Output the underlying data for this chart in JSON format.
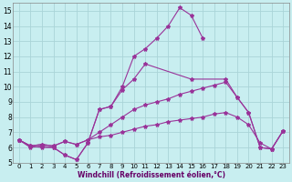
{
  "xlabel": "Windchill (Refroidissement éolien,°C)",
  "xlim": [
    -0.5,
    23.5
  ],
  "ylim": [
    5,
    15.5
  ],
  "xticks": [
    0,
    1,
    2,
    3,
    4,
    5,
    6,
    7,
    8,
    9,
    10,
    11,
    12,
    13,
    14,
    15,
    16,
    17,
    18,
    19,
    20,
    21,
    22,
    23
  ],
  "yticks": [
    5,
    6,
    7,
    8,
    9,
    10,
    11,
    12,
    13,
    14,
    15
  ],
  "background_color": "#c8eef0",
  "grid_color": "#aad4d8",
  "line_color": "#993399",
  "s1_x": [
    0,
    1,
    2,
    3,
    4,
    5,
    6,
    7,
    8,
    9,
    10,
    11,
    12,
    13,
    14,
    15,
    16
  ],
  "s1_y": [
    6.5,
    6.0,
    6.1,
    6.0,
    5.5,
    5.2,
    6.3,
    8.5,
    8.7,
    10.0,
    12.0,
    12.5,
    13.2,
    14.0,
    15.2,
    14.7,
    13.2
  ],
  "s2_x": [
    0,
    1,
    2,
    3,
    4,
    5,
    6,
    7,
    8,
    9,
    10,
    11,
    12,
    13,
    15,
    18,
    19,
    20,
    21,
    22,
    23
  ],
  "s2_y": [
    6.5,
    6.1,
    6.0,
    6.0,
    5.5,
    5.2,
    6.3,
    8.5,
    8.7,
    9.8,
    10.5,
    11.5,
    null,
    null,
    10.5,
    10.5,
    9.3,
    8.3,
    6.0,
    5.9,
    7.1
  ],
  "s3_x": [
    0,
    1,
    2,
    3,
    4,
    5,
    6,
    7,
    8,
    9,
    10,
    11,
    12,
    13,
    14,
    15,
    16,
    17,
    18,
    19,
    20,
    21,
    22,
    23
  ],
  "s3_y": [
    6.5,
    6.1,
    6.2,
    6.1,
    6.4,
    6.2,
    6.5,
    7.0,
    7.5,
    8.0,
    8.5,
    8.8,
    9.0,
    9.2,
    9.5,
    9.7,
    9.9,
    10.1,
    10.3,
    9.3,
    8.3,
    6.0,
    5.9,
    7.1
  ],
  "s4_x": [
    0,
    1,
    2,
    3,
    4,
    5,
    6,
    7,
    8,
    9,
    10,
    11,
    12,
    13,
    14,
    15,
    16,
    17,
    18,
    19,
    20,
    21,
    22,
    23
  ],
  "s4_y": [
    6.5,
    6.1,
    6.2,
    6.1,
    6.4,
    6.2,
    6.5,
    6.7,
    6.8,
    7.0,
    7.2,
    7.4,
    7.5,
    7.7,
    7.8,
    7.9,
    8.0,
    8.2,
    8.3,
    8.0,
    7.5,
    6.3,
    5.9,
    7.1
  ]
}
